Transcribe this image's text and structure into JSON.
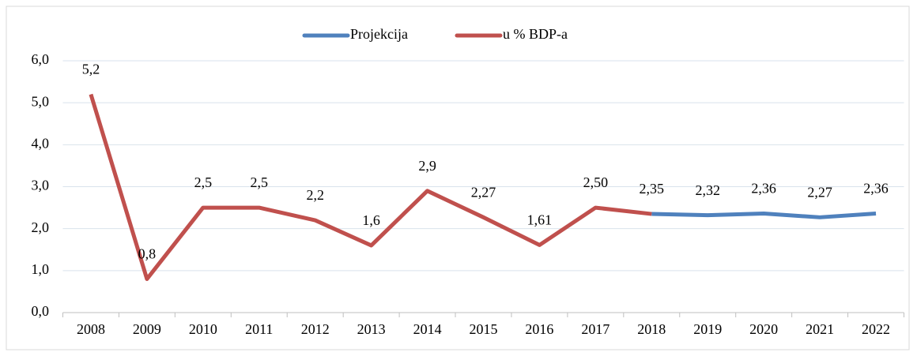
{
  "chart_data": {
    "type": "line",
    "categories": [
      "2008",
      "2009",
      "2010",
      "2011",
      "2012",
      "2013",
      "2014",
      "2015",
      "2016",
      "2017",
      "2018",
      "2019",
      "2020",
      "2021",
      "2022"
    ],
    "series": [
      {
        "name": "Projekcija",
        "color": "#4f81bd",
        "values": [
          null,
          null,
          null,
          null,
          null,
          null,
          null,
          null,
          null,
          null,
          2.35,
          2.32,
          2.36,
          2.27,
          2.36
        ],
        "value_labels": [
          null,
          null,
          null,
          null,
          null,
          null,
          null,
          null,
          null,
          null,
          "2,35",
          "2,32",
          "2,36",
          "2,27",
          "2,36"
        ]
      },
      {
        "name": "u % BDP-a",
        "color": "#c0504d",
        "values": [
          5.2,
          0.8,
          2.5,
          2.5,
          2.2,
          1.6,
          2.9,
          2.27,
          1.61,
          2.5,
          2.35,
          null,
          null,
          null,
          null
        ],
        "value_labels": [
          "5,2",
          "0,8",
          "2,5",
          "2,5",
          "2,2",
          "1,6",
          "2,9",
          "2,27",
          "1,61",
          "2,50",
          null,
          null,
          null,
          null,
          null
        ]
      }
    ],
    "ylim": [
      0,
      6
    ],
    "yticks": [
      {
        "value": 0,
        "label": "0,0"
      },
      {
        "value": 1,
        "label": "1,0"
      },
      {
        "value": 2,
        "label": "2,0"
      },
      {
        "value": 3,
        "label": "3,0"
      },
      {
        "value": 4,
        "label": "4,0"
      },
      {
        "value": 5,
        "label": "5,0"
      },
      {
        "value": 6,
        "label": "6,0"
      }
    ],
    "grid": true,
    "legend": "top"
  }
}
